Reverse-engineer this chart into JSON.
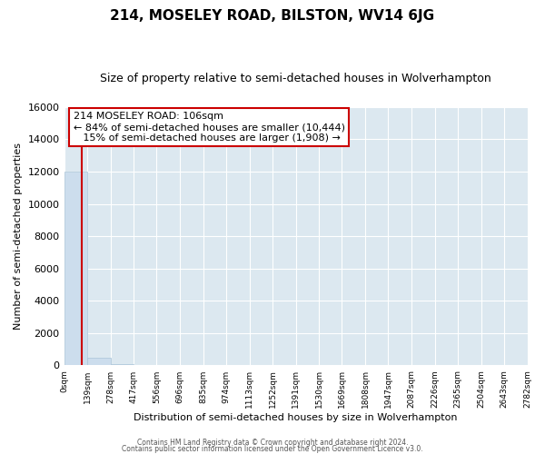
{
  "title": "214, MOSELEY ROAD, BILSTON, WV14 6JG",
  "subtitle": "Size of property relative to semi-detached houses in Wolverhampton",
  "xlabel": "Distribution of semi-detached houses by size in Wolverhampton",
  "ylabel": "Number of semi-detached properties",
  "bin_edges": [
    0,
    139,
    278,
    417,
    556,
    696,
    835,
    974,
    1113,
    1252,
    1391,
    1530,
    1669,
    1808,
    1947,
    2087,
    2226,
    2365,
    2504,
    2643,
    2782
  ],
  "bar_heights": [
    12000,
    500,
    60,
    20,
    12,
    8,
    6,
    4,
    3,
    3,
    2,
    2,
    1,
    1,
    1,
    1,
    1,
    1,
    1,
    1
  ],
  "bar_color": "#ccdded",
  "bar_edge_color": "#aac4d8",
  "property_line_x": 106,
  "property_line_color": "#cc0000",
  "annotation_line1": "214 MOSELEY ROAD: 106sqm",
  "annotation_line2": "← 84% of semi-detached houses are smaller (10,444)",
  "annotation_line3": "   15% of semi-detached houses are larger (1,908) →",
  "annotation_box_color": "white",
  "annotation_box_edge_color": "#cc0000",
  "footer_line1": "Contains HM Land Registry data © Crown copyright and database right 2024.",
  "footer_line2": "Contains public sector information licensed under the Open Government Licence v3.0.",
  "ylim": [
    0,
    16000
  ],
  "xlim": [
    0,
    2782
  ],
  "tick_positions": [
    0,
    139,
    278,
    417,
    556,
    696,
    835,
    974,
    1113,
    1252,
    1391,
    1530,
    1669,
    1808,
    1947,
    2087,
    2226,
    2365,
    2504,
    2643,
    2782
  ],
  "tick_labels": [
    "0sqm",
    "139sqm",
    "278sqm",
    "417sqm",
    "556sqm",
    "696sqm",
    "835sqm",
    "974sqm",
    "1113sqm",
    "1252sqm",
    "1391sqm",
    "1530sqm",
    "1669sqm",
    "1808sqm",
    "1947sqm",
    "2087sqm",
    "2226sqm",
    "2365sqm",
    "2504sqm",
    "2643sqm",
    "2782sqm"
  ],
  "fig_bg_color": "#ffffff",
  "plot_bg_color": "#dce8f0",
  "grid_color": "#ffffff",
  "ytick_positions": [
    0,
    2000,
    4000,
    6000,
    8000,
    10000,
    12000,
    14000,
    16000
  ],
  "title_fontsize": 11,
  "subtitle_fontsize": 9
}
